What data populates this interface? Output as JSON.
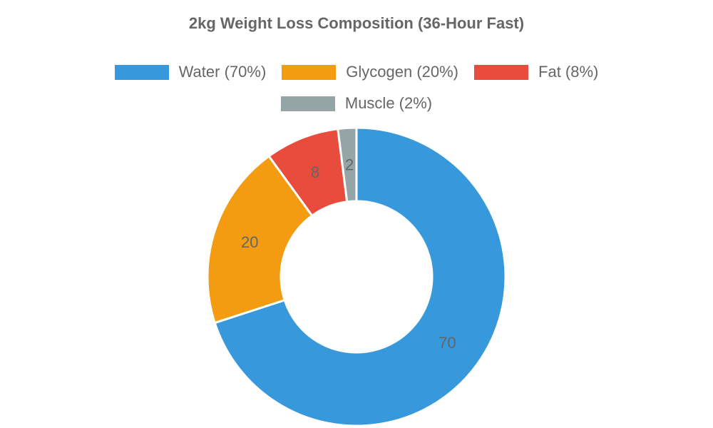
{
  "chart_data": {
    "type": "pie",
    "variant": "doughnut",
    "title": "2kg Weight Loss Composition (36-Hour Fast)",
    "categories": [
      "Water (70%)",
      "Glycogen (20%)",
      "Fat (8%)",
      "Muscle (2%)"
    ],
    "values": [
      70,
      20,
      8,
      2
    ],
    "colors": [
      "#3799dc",
      "#f39c12",
      "#e74c3c",
      "#95a5a6"
    ],
    "legend_position": "top",
    "data_labels": true
  }
}
